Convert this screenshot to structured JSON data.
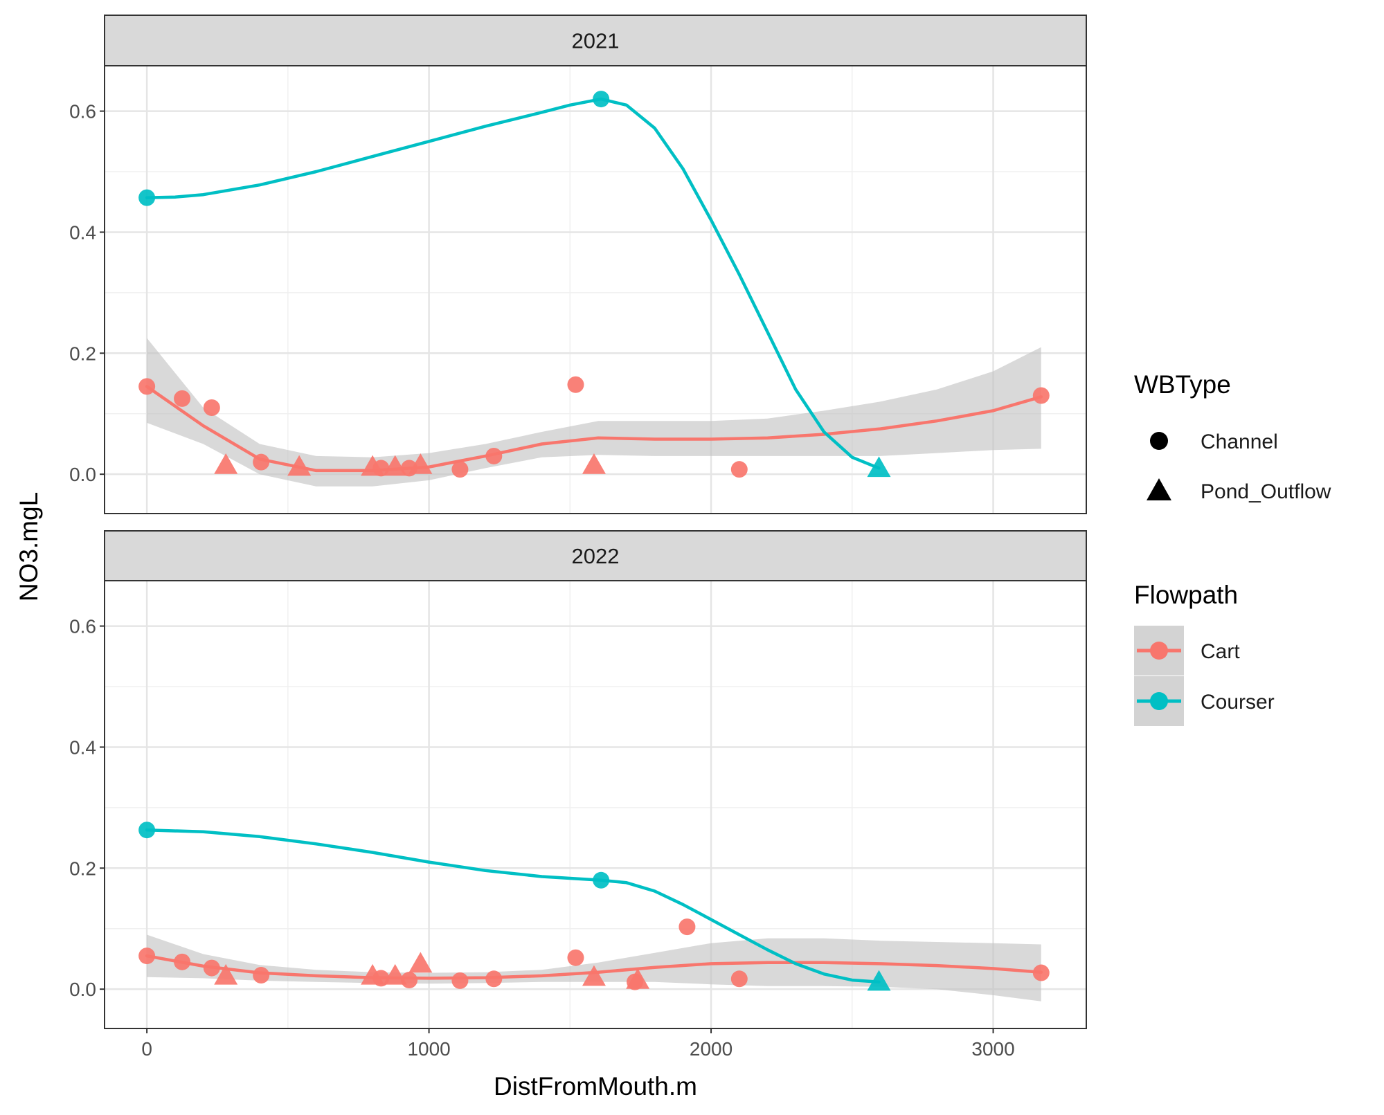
{
  "chart_data": {
    "type": "scatter",
    "facet_by": "year",
    "x_label": "DistFromMouth.m",
    "y_label": "NO3.mgL",
    "xlim": [
      -150,
      3330
    ],
    "ylim": [
      -0.065,
      0.675
    ],
    "x_ticks": [
      0,
      1000,
      2000,
      3000
    ],
    "y_ticks": [
      0.0,
      0.2,
      0.4,
      0.6
    ],
    "x_tick_labels": [
      "0",
      "1000",
      "2000",
      "3000"
    ],
    "y_tick_labels": [
      "0.0",
      "0.2",
      "0.4",
      "0.6"
    ],
    "grid": true,
    "smoother": "loess",
    "confidence_band": true,
    "colors": {
      "Cart": "#F8766D",
      "Courser": "#00BFC4",
      "band": "#c0c0c0",
      "strip": "#d9d9d9"
    },
    "legend_position": "right",
    "legends": [
      {
        "title": "WBType",
        "kind": "shape",
        "items": [
          {
            "label": "Channel",
            "shape": "circle"
          },
          {
            "label": "Pond_Outflow",
            "shape": "triangle"
          }
        ]
      },
      {
        "title": "Flowpath",
        "kind": "color",
        "items": [
          {
            "label": "Cart",
            "color": "#F8766D"
          },
          {
            "label": "Courser",
            "color": "#00BFC4"
          }
        ]
      }
    ],
    "panels": [
      {
        "strip": "2021",
        "points": [
          {
            "flowpath": "Cart",
            "wbtype": "Channel",
            "x": 0,
            "y": 0.145
          },
          {
            "flowpath": "Cart",
            "wbtype": "Channel",
            "x": 125,
            "y": 0.125
          },
          {
            "flowpath": "Cart",
            "wbtype": "Channel",
            "x": 230,
            "y": 0.11
          },
          {
            "flowpath": "Cart",
            "wbtype": "Pond_Outflow",
            "x": 280,
            "y": 0.015
          },
          {
            "flowpath": "Cart",
            "wbtype": "Channel",
            "x": 405,
            "y": 0.02
          },
          {
            "flowpath": "Cart",
            "wbtype": "Pond_Outflow",
            "x": 540,
            "y": 0.012
          },
          {
            "flowpath": "Cart",
            "wbtype": "Pond_Outflow",
            "x": 800,
            "y": 0.012
          },
          {
            "flowpath": "Cart",
            "wbtype": "Channel",
            "x": 830,
            "y": 0.01
          },
          {
            "flowpath": "Cart",
            "wbtype": "Pond_Outflow",
            "x": 880,
            "y": 0.012
          },
          {
            "flowpath": "Cart",
            "wbtype": "Channel",
            "x": 930,
            "y": 0.01
          },
          {
            "flowpath": "Cart",
            "wbtype": "Pond_Outflow",
            "x": 970,
            "y": 0.015
          },
          {
            "flowpath": "Cart",
            "wbtype": "Channel",
            "x": 1110,
            "y": 0.008
          },
          {
            "flowpath": "Cart",
            "wbtype": "Channel",
            "x": 1230,
            "y": 0.03
          },
          {
            "flowpath": "Cart",
            "wbtype": "Channel",
            "x": 1520,
            "y": 0.148
          },
          {
            "flowpath": "Cart",
            "wbtype": "Pond_Outflow",
            "x": 1585,
            "y": 0.015
          },
          {
            "flowpath": "Cart",
            "wbtype": "Channel",
            "x": 2100,
            "y": 0.008
          },
          {
            "flowpath": "Cart",
            "wbtype": "Channel",
            "x": 3170,
            "y": 0.13
          },
          {
            "flowpath": "Courser",
            "wbtype": "Channel",
            "x": 0,
            "y": 0.457
          },
          {
            "flowpath": "Courser",
            "wbtype": "Channel",
            "x": 1610,
            "y": 0.62
          },
          {
            "flowpath": "Courser",
            "wbtype": "Pond_Outflow",
            "x": 2595,
            "y": 0.01
          }
        ],
        "smooths": [
          {
            "flowpath": "Cart",
            "x": [
              0,
              200,
              400,
              600,
              800,
              1000,
              1200,
              1400,
              1600,
              1800,
              2000,
              2200,
              2400,
              2600,
              2800,
              3000,
              3170
            ],
            "y": [
              0.145,
              0.08,
              0.025,
              0.006,
              0.006,
              0.012,
              0.03,
              0.05,
              0.06,
              0.058,
              0.058,
              0.06,
              0.066,
              0.075,
              0.088,
              0.105,
              0.128
            ],
            "lower": [
              0.085,
              0.05,
              0.0,
              -0.02,
              -0.02,
              -0.01,
              0.01,
              0.028,
              0.032,
              0.03,
              0.03,
              0.03,
              0.03,
              0.03,
              0.035,
              0.04,
              0.042
            ],
            "upper": [
              0.225,
              0.11,
              0.05,
              0.03,
              0.028,
              0.035,
              0.05,
              0.07,
              0.088,
              0.088,
              0.088,
              0.092,
              0.105,
              0.12,
              0.14,
              0.17,
              0.21
            ]
          },
          {
            "flowpath": "Courser",
            "x": [
              0,
              100,
              200,
              400,
              600,
              800,
              1000,
              1200,
              1400,
              1500,
              1610,
              1700,
              1800,
              1900,
              2000,
              2100,
              2200,
              2300,
              2400,
              2500,
              2595
            ],
            "y": [
              0.457,
              0.458,
              0.462,
              0.478,
              0.5,
              0.525,
              0.55,
              0.575,
              0.598,
              0.61,
              0.62,
              0.61,
              0.572,
              0.505,
              0.42,
              0.33,
              0.235,
              0.14,
              0.07,
              0.028,
              0.01
            ]
          }
        ]
      },
      {
        "strip": "2022",
        "points": [
          {
            "flowpath": "Cart",
            "wbtype": "Channel",
            "x": 0,
            "y": 0.055
          },
          {
            "flowpath": "Cart",
            "wbtype": "Channel",
            "x": 125,
            "y": 0.045
          },
          {
            "flowpath": "Cart",
            "wbtype": "Channel",
            "x": 230,
            "y": 0.035
          },
          {
            "flowpath": "Cart",
            "wbtype": "Pond_Outflow",
            "x": 280,
            "y": 0.022
          },
          {
            "flowpath": "Cart",
            "wbtype": "Channel",
            "x": 405,
            "y": 0.023
          },
          {
            "flowpath": "Cart",
            "wbtype": "Pond_Outflow",
            "x": 800,
            "y": 0.022
          },
          {
            "flowpath": "Cart",
            "wbtype": "Channel",
            "x": 830,
            "y": 0.018
          },
          {
            "flowpath": "Cart",
            "wbtype": "Pond_Outflow",
            "x": 880,
            "y": 0.022
          },
          {
            "flowpath": "Cart",
            "wbtype": "Channel",
            "x": 930,
            "y": 0.015
          },
          {
            "flowpath": "Cart",
            "wbtype": "Pond_Outflow",
            "x": 970,
            "y": 0.042
          },
          {
            "flowpath": "Cart",
            "wbtype": "Channel",
            "x": 1110,
            "y": 0.014
          },
          {
            "flowpath": "Cart",
            "wbtype": "Channel",
            "x": 1230,
            "y": 0.017
          },
          {
            "flowpath": "Cart",
            "wbtype": "Channel",
            "x": 1520,
            "y": 0.052
          },
          {
            "flowpath": "Cart",
            "wbtype": "Pond_Outflow",
            "x": 1585,
            "y": 0.02
          },
          {
            "flowpath": "Cart",
            "wbtype": "Channel",
            "x": 1730,
            "y": 0.012
          },
          {
            "flowpath": "Cart",
            "wbtype": "Pond_Outflow",
            "x": 1740,
            "y": 0.015
          },
          {
            "flowpath": "Cart",
            "wbtype": "Channel",
            "x": 1915,
            "y": 0.103
          },
          {
            "flowpath": "Cart",
            "wbtype": "Channel",
            "x": 2100,
            "y": 0.017
          },
          {
            "flowpath": "Cart",
            "wbtype": "Channel",
            "x": 3170,
            "y": 0.027
          },
          {
            "flowpath": "Courser",
            "wbtype": "Channel",
            "x": 0,
            "y": 0.263
          },
          {
            "flowpath": "Courser",
            "wbtype": "Channel",
            "x": 1610,
            "y": 0.18
          },
          {
            "flowpath": "Courser",
            "wbtype": "Pond_Outflow",
            "x": 2595,
            "y": 0.012
          }
        ],
        "smooths": [
          {
            "flowpath": "Cart",
            "x": [
              0,
              200,
              400,
              600,
              800,
              1000,
              1200,
              1400,
              1600,
              1800,
              2000,
              2200,
              2400,
              2600,
              2800,
              3000,
              3170
            ],
            "y": [
              0.055,
              0.038,
              0.027,
              0.022,
              0.019,
              0.018,
              0.019,
              0.022,
              0.028,
              0.036,
              0.042,
              0.044,
              0.044,
              0.042,
              0.039,
              0.034,
              0.028
            ],
            "lower": [
              0.02,
              0.018,
              0.014,
              0.012,
              0.01,
              0.009,
              0.01,
              0.012,
              0.012,
              0.012,
              0.008,
              0.005,
              0.005,
              0.004,
              0.0,
              -0.01,
              -0.02
            ],
            "upper": [
              0.09,
              0.058,
              0.04,
              0.032,
              0.028,
              0.027,
              0.028,
              0.032,
              0.044,
              0.06,
              0.076,
              0.084,
              0.084,
              0.08,
              0.078,
              0.076,
              0.074
            ]
          },
          {
            "flowpath": "Courser",
            "x": [
              0,
              200,
              400,
              600,
              800,
              1000,
              1200,
              1400,
              1610,
              1700,
              1800,
              1900,
              2000,
              2100,
              2200,
              2300,
              2400,
              2500,
              2595
            ],
            "y": [
              0.263,
              0.26,
              0.252,
              0.24,
              0.226,
              0.21,
              0.196,
              0.186,
              0.18,
              0.176,
              0.162,
              0.14,
              0.115,
              0.09,
              0.065,
              0.042,
              0.025,
              0.015,
              0.012
            ]
          }
        ]
      }
    ]
  }
}
